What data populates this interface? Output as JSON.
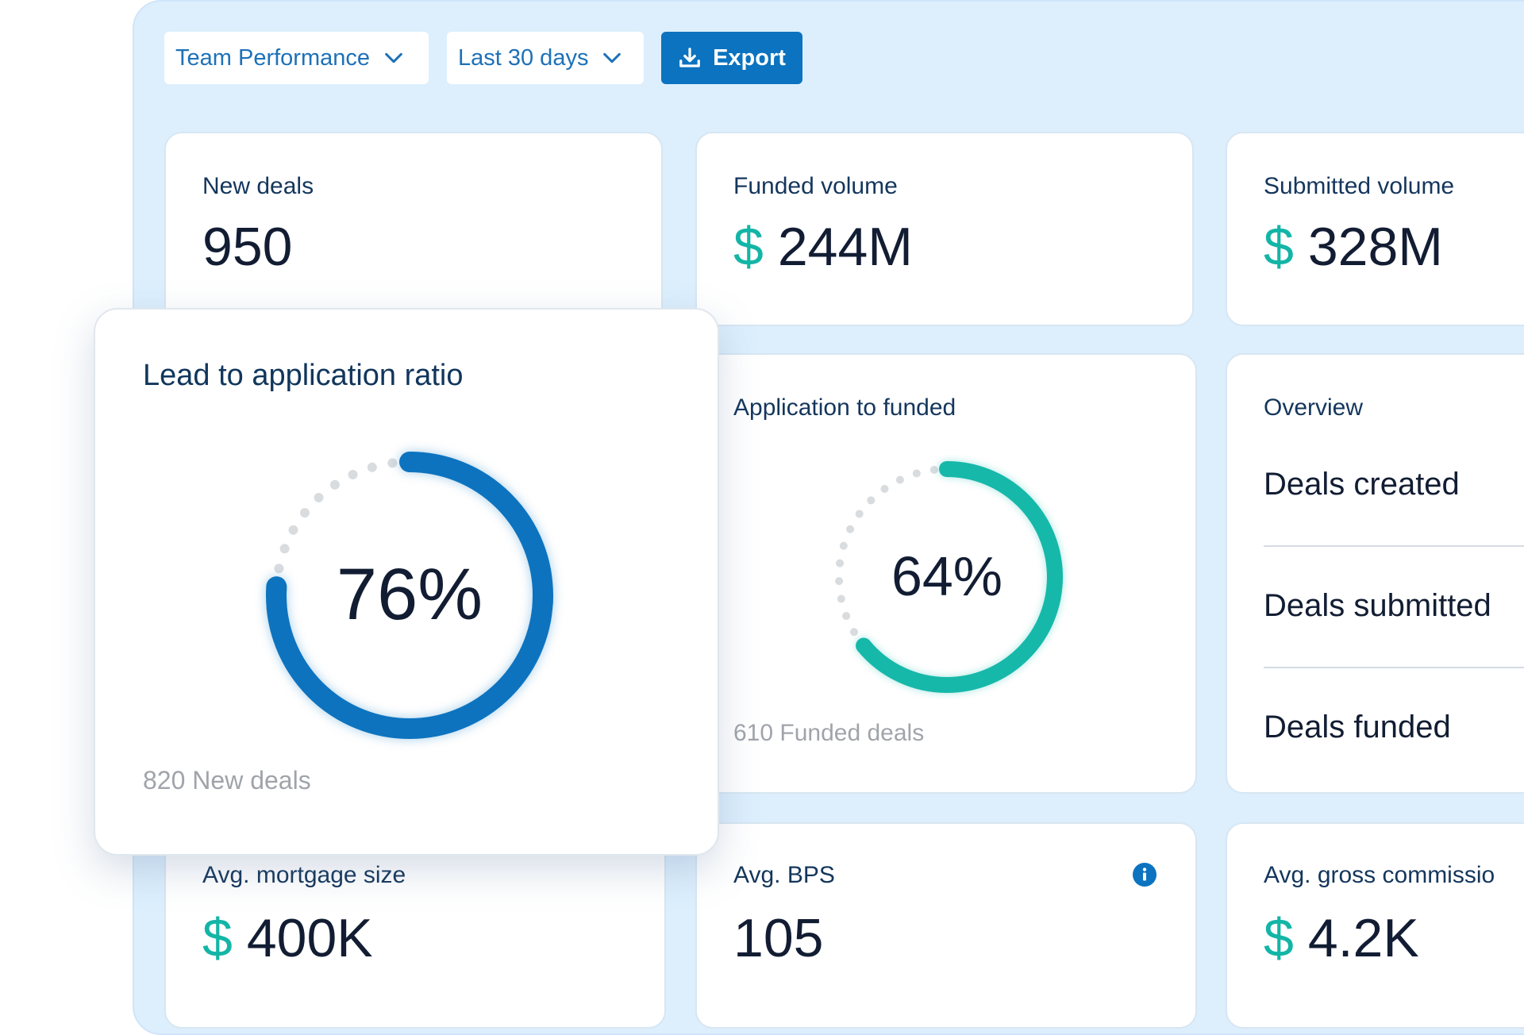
{
  "toolbar": {
    "report_select": "Team Performance",
    "period_select": "Last 30 days",
    "export_label": "Export",
    "accent": "#0b73bf"
  },
  "cards": {
    "new_deals": {
      "label": "New deals",
      "value": "950"
    },
    "funded_volume": {
      "label": "Funded volume",
      "currency": "$",
      "value": "244M"
    },
    "submitted_volume": {
      "label": "Submitted volume",
      "currency": "$",
      "value": "328M"
    },
    "application_to_funded": {
      "label": "Application to funded",
      "percent_text": "64%",
      "percent": 64,
      "footnote": "610 Funded deals",
      "color": "#13b8a9"
    },
    "overview": {
      "label": "Overview",
      "rows": [
        "Deals created",
        "Deals submitted",
        "Deals funded"
      ]
    },
    "avg_mortgage": {
      "label": "Avg. mortgage size",
      "currency": "$",
      "value": "400K"
    },
    "avg_bps": {
      "label": "Avg. BPS",
      "value": "105",
      "info_icon": "info-icon"
    },
    "avg_commission": {
      "label": "Avg. gross commissio",
      "currency": "$",
      "value": "4.2K"
    }
  },
  "popup": {
    "title": "Lead to application ratio",
    "percent_text": "76%",
    "percent": 76,
    "footnote": "820 New deals",
    "color": "#0b73bf"
  }
}
